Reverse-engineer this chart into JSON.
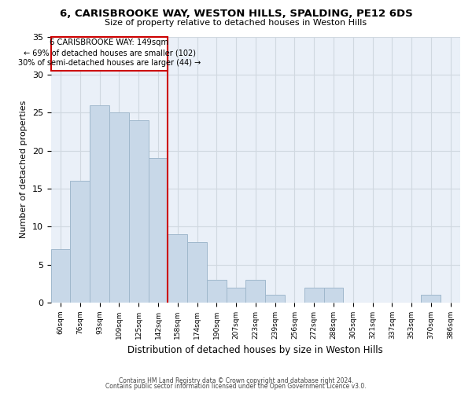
{
  "title": "6, CARISBROOKE WAY, WESTON HILLS, SPALDING, PE12 6DS",
  "subtitle": "Size of property relative to detached houses in Weston Hills",
  "xlabel": "Distribution of detached houses by size in Weston Hills",
  "ylabel": "Number of detached properties",
  "bin_labels": [
    "60sqm",
    "76sqm",
    "93sqm",
    "109sqm",
    "125sqm",
    "142sqm",
    "158sqm",
    "174sqm",
    "190sqm",
    "207sqm",
    "223sqm",
    "239sqm",
    "256sqm",
    "272sqm",
    "288sqm",
    "305sqm",
    "321sqm",
    "337sqm",
    "353sqm",
    "370sqm",
    "386sqm"
  ],
  "bar_values": [
    7,
    16,
    26,
    25,
    24,
    19,
    9,
    8,
    3,
    2,
    3,
    1,
    0,
    2,
    2,
    0,
    0,
    0,
    0,
    1,
    0
  ],
  "bar_color": "#c8d8e8",
  "bar_edge_color": "#a0b8cc",
  "vline_color": "#cc0000",
  "ylim": [
    0,
    35
  ],
  "yticks": [
    0,
    5,
    10,
    15,
    20,
    25,
    30,
    35
  ],
  "annotation_line1": "6 CARISBROOKE WAY: 149sqm",
  "annotation_line2": "← 69% of detached houses are smaller (102)",
  "annotation_line3": "30% of semi-detached houses are larger (44) →",
  "footer_line1": "Contains HM Land Registry data © Crown copyright and database right 2024.",
  "footer_line2": "Contains public sector information licensed under the Open Government Licence v3.0.",
  "background_color": "#ffffff",
  "grid_color": "#d0d8e0",
  "plot_bg_color": "#eaf0f8"
}
